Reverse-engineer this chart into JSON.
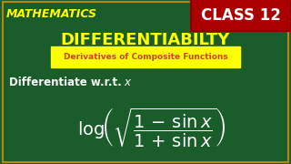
{
  "bg_color": "#1a5c2a",
  "border_color": "#b8860b",
  "title_math": "MATHEMATICS",
  "title_math_color": "#ffff00",
  "title_math_fontsize": 9,
  "main_title": "DIFFERENTIABILTY",
  "main_title_color": "#ffff00",
  "main_title_fontsize": 13,
  "subtitle": "Derivatives of Composite Functions",
  "subtitle_color": "#cc4400",
  "subtitle_bg": "#ffff00",
  "subtitle_fontsize": 6.5,
  "class_text": "CLASS 12",
  "class_bg": "#aa0000",
  "class_border": "#cc0000",
  "class_text_color": "#ffffff",
  "class_fontsize": 12,
  "instruction": "Differentiate w.r.t. ",
  "instruction_x": "x",
  "instruction_color": "#ffffff",
  "instruction_fontsize": 8.5,
  "formula_color": "#ffffff",
  "formula_fontsize": 14
}
